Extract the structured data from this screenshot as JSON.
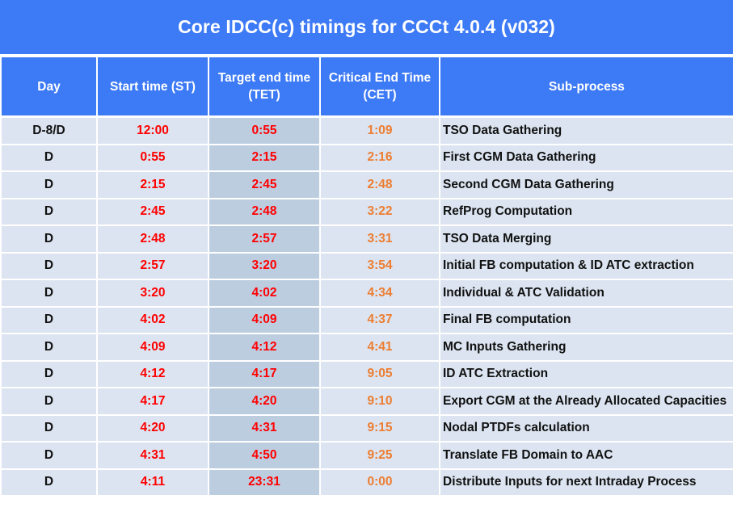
{
  "title": "Core IDCC(c) timings for CCCt 4.0.4 (v032)",
  "colors": {
    "header_bg": "#3d7af5",
    "row_bg": "#dbe4f0",
    "tet_bg": "#bccde0",
    "start_time_text": "#ff0000",
    "target_end_text": "#ff0000",
    "critical_end_text": "#ed7d31"
  },
  "table": {
    "headers": {
      "day": "Day",
      "start_time": "Start time (ST)",
      "target_end_line1": "Target end time",
      "target_end_line2": "(TET)",
      "critical_end_line1": "Critical End Time",
      "critical_end_line2": "(CET)",
      "sub_process": "Sub-process"
    },
    "rows": [
      {
        "day": "D-8/D",
        "st": "12:00",
        "tet": "0:55",
        "cet": "1:09",
        "sub": "TSO Data Gathering"
      },
      {
        "day": "D",
        "st": "0:55",
        "tet": "2:15",
        "cet": "2:16",
        "sub": "First CGM Data Gathering"
      },
      {
        "day": "D",
        "st": "2:15",
        "tet": "2:45",
        "cet": "2:48",
        "sub": "Second CGM Data Gathering"
      },
      {
        "day": "D",
        "st": "2:45",
        "tet": "2:48",
        "cet": "3:22",
        "sub": "RefProg Computation"
      },
      {
        "day": "D",
        "st": "2:48",
        "tet": "2:57",
        "cet": "3:31",
        "sub": "TSO Data Merging"
      },
      {
        "day": "D",
        "st": "2:57",
        "tet": "3:20",
        "cet": "3:54",
        "sub": "Initial FB computation & ID ATC extraction"
      },
      {
        "day": "D",
        "st": "3:20",
        "tet": "4:02",
        "cet": "4:34",
        "sub": "Individual & ATC Validation"
      },
      {
        "day": "D",
        "st": "4:02",
        "tet": "4:09",
        "cet": "4:37",
        "sub": "Final FB computation"
      },
      {
        "day": "D",
        "st": "4:09",
        "tet": "4:12",
        "cet": "4:41",
        "sub": "MC Inputs Gathering"
      },
      {
        "day": "D",
        "st": "4:12",
        "tet": "4:17",
        "cet": "9:05",
        "sub": "ID ATC Extraction"
      },
      {
        "day": "D",
        "st": "4:17",
        "tet": "4:20",
        "cet": "9:10",
        "sub": "Export CGM at the Already Allocated Capacities"
      },
      {
        "day": "D",
        "st": "4:20",
        "tet": "4:31",
        "cet": "9:15",
        "sub": "Nodal PTDFs calculation"
      },
      {
        "day": "D",
        "st": "4:31",
        "tet": "4:50",
        "cet": "9:25",
        "sub": "Translate FB Domain to AAC"
      },
      {
        "day": "D",
        "st": "4:11",
        "tet": "23:31",
        "cet": "0:00",
        "sub": "Distribute Inputs for next Intraday Process"
      }
    ]
  }
}
